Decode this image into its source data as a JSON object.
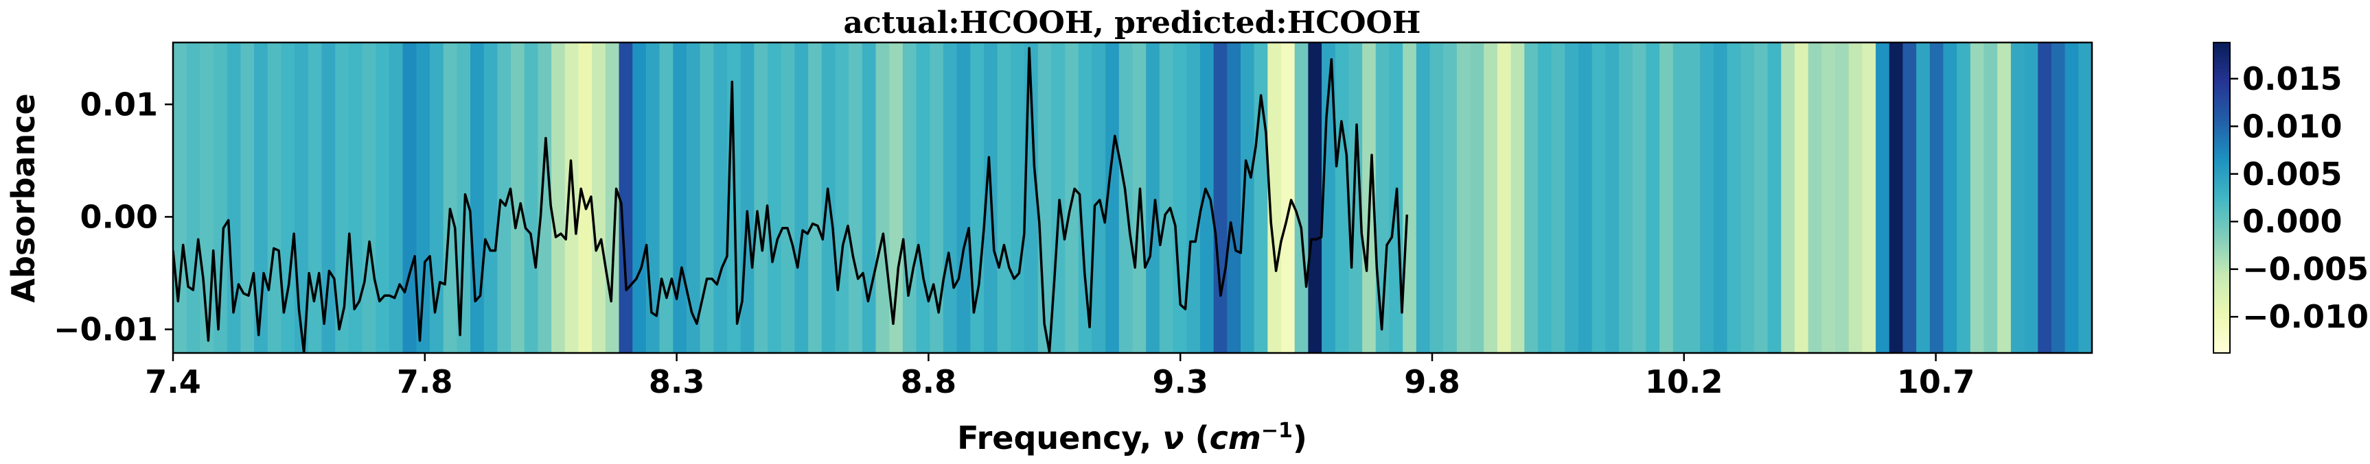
{
  "chart_data": {
    "type": "line",
    "title": "actual:HCOOH, predicted:HCOOH",
    "xlabel": "Frequency, ν (cm⁻¹)",
    "xlabel_parts": {
      "prefix": "Frequency, ",
      "nu": "ν",
      "open": " (",
      "cm": "cm",
      "exp": "−1",
      "close": ")"
    },
    "ylabel": "Absorbance",
    "xlim": [
      7.4,
      11.21
    ],
    "ylim": [
      -0.0121,
      0.0155
    ],
    "x_ticks": [
      7.4,
      7.9,
      8.4,
      8.9,
      9.4,
      9.9,
      10.4,
      10.9
    ],
    "x_tick_labels": [
      "7.4",
      "7.8",
      "8.3",
      "8.8",
      "9.3",
      "9.8",
      "10.2",
      "10.7"
    ],
    "y_ticks": [
      0.01,
      0.0,
      -0.01
    ],
    "y_tick_labels": [
      "0.01",
      "0.00",
      "−0.01"
    ],
    "colorbar": {
      "min": -0.0138,
      "max": 0.0188,
      "ticks": [
        0.015,
        0.01,
        0.005,
        0.0,
        -0.005,
        -0.01
      ],
      "tick_labels": [
        "0.015",
        "0.010",
        "0.005",
        "0.000",
        "−0.005",
        "−0.010"
      ],
      "colormap": [
        "#ffffd9",
        "#edf8b1",
        "#c7e9b4",
        "#7fcdbb",
        "#41b6c4",
        "#1d91c0",
        "#225ea8",
        "#253494",
        "#081d58"
      ]
    },
    "x_start": 7.4,
    "x_step": 0.01,
    "series": [
      {
        "color": "#000000",
        "y": [
          -0.003,
          -0.0075,
          -0.0025,
          -0.0062,
          -0.0065,
          -0.002,
          -0.0055,
          -0.011,
          -0.003,
          -0.01,
          -0.001,
          -0.0003,
          -0.0085,
          -0.006,
          -0.0068,
          -0.007,
          -0.005,
          -0.0105,
          -0.005,
          -0.0065,
          -0.0028,
          -0.003,
          -0.0085,
          -0.006,
          -0.0015,
          -0.0082,
          -0.0121,
          -0.005,
          -0.0075,
          -0.005,
          -0.0095,
          -0.0048,
          -0.0055,
          -0.01,
          -0.008,
          -0.0015,
          -0.0082,
          -0.0075,
          -0.0058,
          -0.0022,
          -0.0055,
          -0.0075,
          -0.007,
          -0.007,
          -0.0072,
          -0.006,
          -0.0067,
          -0.005,
          -0.0035,
          -0.011,
          -0.004,
          -0.0035,
          -0.0085,
          -0.0058,
          -0.006,
          0.0007,
          -0.001,
          -0.0105,
          0.002,
          0.0005,
          -0.0075,
          -0.007,
          -0.002,
          -0.003,
          -0.003,
          0.0015,
          0.001,
          0.0025,
          -0.001,
          0.0012,
          -0.001,
          -0.0015,
          -0.0045,
          0.0001,
          0.007,
          0.001,
          -0.0018,
          -0.0015,
          -0.002,
          0.005,
          -0.0015,
          0.0025,
          0.0007,
          0.0018,
          -0.003,
          -0.002,
          -0.0048,
          -0.0075,
          0.0025,
          0.0012,
          -0.0065,
          -0.006,
          -0.0055,
          -0.0045,
          -0.0025,
          -0.0085,
          -0.0088,
          -0.0055,
          -0.0072,
          -0.0055,
          -0.0073,
          -0.0045,
          -0.0065,
          -0.0085,
          -0.0095,
          -0.0075,
          -0.0055,
          -0.0055,
          -0.006,
          -0.0045,
          -0.0035,
          0.012,
          -0.0095,
          -0.0075,
          0.0005,
          -0.0045,
          0.0005,
          -0.003,
          0.001,
          -0.004,
          -0.002,
          -0.001,
          -0.001,
          -0.0025,
          -0.0045,
          -0.0012,
          -0.0015,
          -0.0006,
          -0.0008,
          -0.002,
          0.0025,
          -0.001,
          -0.0065,
          -0.0025,
          -0.0008,
          -0.0035,
          -0.0055,
          -0.005,
          -0.0075,
          -0.0055,
          -0.0035,
          -0.0015,
          -0.0055,
          -0.0095,
          -0.0045,
          -0.002,
          -0.007,
          -0.0045,
          -0.0025,
          -0.0055,
          -0.0075,
          -0.006,
          -0.0085,
          -0.0055,
          -0.0032,
          -0.0063,
          -0.0055,
          -0.0028,
          -0.001,
          -0.0085,
          -0.006,
          -0.001,
          0.0053,
          -0.003,
          -0.0045,
          -0.0025,
          -0.0045,
          -0.0055,
          -0.005,
          -0.0015,
          0.015,
          0.0045,
          -0.0005,
          -0.0095,
          -0.012,
          -0.0055,
          0.0015,
          -0.002,
          0.0005,
          0.0025,
          0.002,
          -0.005,
          -0.0098,
          0.001,
          0.0015,
          -0.0005,
          0.0036,
          0.0072,
          0.005,
          0.0025,
          -0.0015,
          -0.0045,
          0.0025,
          -0.0045,
          -0.0035,
          0.0015,
          -0.0025,
          0.0002,
          0.0008,
          -0.0008,
          -0.0078,
          -0.0082,
          -0.0022,
          -0.0022,
          0.0005,
          0.0025,
          0.0015,
          -0.0015,
          -0.007,
          -0.0045,
          -0.0005,
          -0.003,
          -0.0032,
          0.005,
          0.0035,
          0.0063,
          0.0108,
          0.0075,
          -0.0005,
          -0.0048,
          -0.0022,
          -0.0005,
          0.0015,
          0.0005,
          -0.001,
          -0.0062,
          -0.002,
          -0.002,
          -0.0018,
          0.0088,
          0.014,
          0.0045,
          0.0085,
          0.0055,
          -0.0045,
          0.0082,
          -0.0015,
          -0.0048,
          0.0055,
          -0.0045,
          -0.01,
          -0.0025,
          -0.0018,
          0.0025,
          -0.0085,
          0.0002
        ]
      }
    ],
    "bands": [
      0.0005,
      0.0015,
      0.0008,
      0.0015,
      0.003,
      0.001,
      0.0035,
      0.0015,
      0.0025,
      0.0035,
      0.002,
      0.004,
      0.002,
      0.0025,
      0.0015,
      0.0025,
      0.0035,
      0.007,
      0.0055,
      0.0035,
      0.0005,
      0.0015,
      0.0055,
      0.0035,
      0.001,
      -0.001,
      0.0015,
      -0.0005,
      -0.0045,
      -0.007,
      -0.0095,
      -0.006,
      -0.0035,
      0.0125,
      0.0065,
      0.0045,
      0.0015,
      0.0055,
      0.004,
      0.0015,
      0.0035,
      0.0025,
      0.004,
      0.001,
      0.0025,
      0.0015,
      0.0035,
      0.0005,
      0.003,
      0.002,
      0.0005,
      0.003,
      -0.0015,
      -0.003,
      0.0005,
      0.0025,
      0.001,
      0.0035,
      0.005,
      0.0025,
      0.004,
      0.002,
      0.0028,
      0.0035,
      0.001,
      0.002,
      0.0005,
      0.0025,
      0.0035,
      0.0055,
      0.001,
      0.0,
      0.0045,
      0.0015,
      0.0025,
      0.0035,
      0.0055,
      0.0115,
      0.0085,
      0.0045,
      0.002,
      -0.0085,
      -0.011,
      -0.0005,
      0.0185,
      0.0045,
      0.0025,
      0.0015,
      -0.0035,
      0.0015,
      0.0025,
      -0.003,
      0.0035,
      0.0015,
      0.0005,
      -0.002,
      -0.0015,
      -0.0045,
      -0.0085,
      -0.005,
      0.0005,
      0.0025,
      0.0015,
      0.0035,
      0.0045,
      0.0025,
      0.0035,
      0.0015,
      0.0005,
      0.0025,
      -0.001,
      0.0015,
      0.0015,
      0.0035,
      0.0045,
      0.0025,
      0.0015,
      0.0005,
      0.0025,
      -0.0045,
      -0.008,
      -0.003,
      -0.004,
      -0.0035,
      -0.0055,
      -0.0075,
      0.0065,
      0.0185,
      0.011,
      0.0045,
      0.0095,
      0.0055,
      0.003,
      -0.003,
      -0.0015,
      -0.005,
      0.004,
      0.0045,
      0.0125,
      0.0095,
      0.0065,
      0.0045
    ]
  }
}
